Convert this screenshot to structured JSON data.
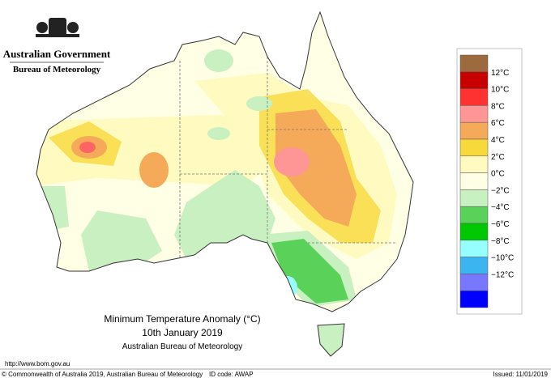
{
  "header": {
    "government": "Australian Government",
    "bureau": "Bureau of Meteorology"
  },
  "title": {
    "line1": "Minimum Temperature Anomaly (°C)",
    "line2": "10th January 2019",
    "line3": "Australian Bureau of Meteorology"
  },
  "legend": {
    "swatches": [
      "#9c6a3c",
      "#c80000",
      "#ff3232",
      "#ff9696",
      "#f5aa5a",
      "#f8d93c",
      "#fffac0",
      "#ffffe6",
      "#c8f0c0",
      "#5ad25a",
      "#00c800",
      "#96ffff",
      "#3cb4f0",
      "#7878ff",
      "#0000ff"
    ],
    "labels": [
      "12°C",
      "10°C",
      "8°C",
      "6°C",
      "4°C",
      "2°C",
      "0°C",
      "−2°C",
      "−4°C",
      "−6°C",
      "−8°C",
      "−10°C",
      "−12°C"
    ]
  },
  "footer": {
    "url": "http://www.bom.gov.au",
    "copyright": "© Commonwealth of Australia 2019, Australian Bureau of Meteorology",
    "id": "ID code: AWAP",
    "issued": "Issued: 11/01/2019"
  }
}
